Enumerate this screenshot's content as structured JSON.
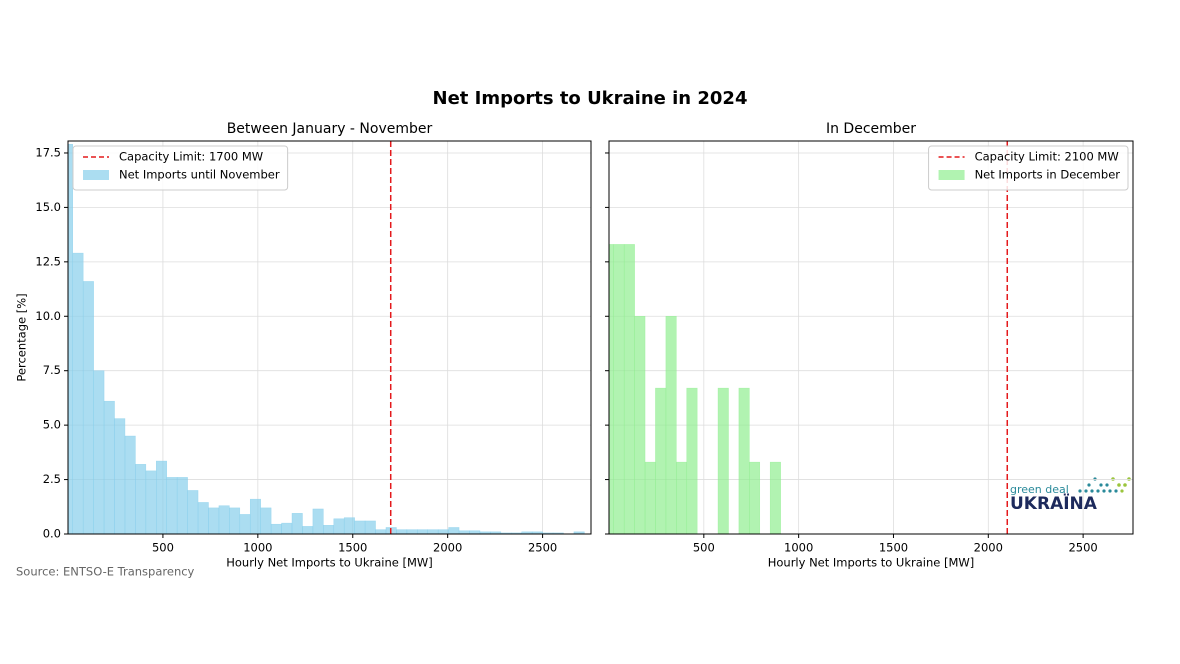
{
  "title": "Net Imports to Ukraine in 2024",
  "source": "Source: ENTSO-E Transparency",
  "logo": {
    "top": "green deal",
    "bottom": "UKRAЇNA"
  },
  "chart_data": [
    {
      "type": "histogram",
      "title": "Between January - November",
      "xlabel": "Hourly Net Imports to Ukraine [MW]",
      "ylabel": "Percentage [%]",
      "bins": [
        0,
        25,
        80,
        135,
        190,
        245,
        300,
        355,
        410,
        465,
        520,
        575,
        630,
        685,
        740,
        795,
        850,
        905,
        960,
        1015,
        1070,
        1125,
        1180,
        1235,
        1290,
        1345,
        1400,
        1455,
        1510,
        1565,
        1620,
        1675,
        1730,
        1785,
        1840,
        1895,
        1950,
        2005,
        2060,
        2115,
        2170,
        2225,
        2280,
        2335,
        2390,
        2445,
        2500,
        2555,
        2610,
        2665,
        2720
      ],
      "series": [
        {
          "name": "Net Imports until November",
          "color": "#87ceeb",
          "values": [
            17.9,
            12.9,
            11.6,
            7.5,
            6.1,
            5.3,
            4.5,
            3.2,
            2.9,
            3.35,
            2.6,
            2.6,
            2.0,
            1.45,
            1.2,
            1.3,
            1.2,
            0.9,
            1.6,
            1.2,
            0.45,
            0.5,
            0.95,
            0.35,
            1.15,
            0.4,
            0.7,
            0.75,
            0.6,
            0.6,
            0.2,
            0.3,
            0.2,
            0.2,
            0.2,
            0.2,
            0.2,
            0.3,
            0.15,
            0.15,
            0.1,
            0.1,
            0.05,
            0.05,
            0.1,
            0.1,
            0.05,
            0.05,
            0,
            0.1
          ]
        }
      ],
      "vline": {
        "name": "Capacity Limit: 1700 MW",
        "value": 1700,
        "color": "#e41a1c"
      },
      "xlim": [
        0,
        2755
      ],
      "ylim": [
        0,
        18.05
      ],
      "xticks": [
        500,
        1000,
        1500,
        2000,
        2500
      ],
      "yticks": [
        {
          "value": 0,
          "label": "0.0"
        },
        {
          "value": 2.5,
          "label": "2.5"
        },
        {
          "value": 5,
          "label": "5.0"
        },
        {
          "value": 7.5,
          "label": "7.5"
        },
        {
          "value": 10,
          "label": "10.0"
        },
        {
          "value": 12.5,
          "label": "12.5"
        },
        {
          "value": 15,
          "label": "15.0"
        },
        {
          "value": 17.5,
          "label": "17.5"
        }
      ],
      "grid": true,
      "legend": "upper left"
    },
    {
      "type": "histogram",
      "title": "In December",
      "xlabel": "Hourly Net Imports to Ukraine [MW]",
      "bins": [
        0,
        25,
        80,
        135,
        190,
        245,
        300,
        355,
        410,
        465,
        520,
        575,
        630,
        685,
        740,
        795,
        850,
        905
      ],
      "series": [
        {
          "name": "Net Imports in December",
          "color": "#90ee90",
          "values": [
            13.3,
            13.3,
            13.3,
            10.0,
            3.3,
            6.7,
            10.0,
            3.3,
            6.7,
            0,
            0,
            6.7,
            0,
            6.7,
            3.3,
            0,
            3.3
          ]
        }
      ],
      "vline": {
        "name": "Capacity Limit: 2100 MW",
        "value": 2100,
        "color": "#e41a1c"
      },
      "xlim": [
        0,
        2763
      ],
      "ylim": [
        0,
        18.05
      ],
      "xticks": [
        500,
        1000,
        1500,
        2000,
        2500
      ],
      "yticks": [
        0,
        2.5,
        5,
        7.5,
        10,
        12.5,
        15,
        17.5
      ],
      "grid": true,
      "legend": "upper right"
    }
  ]
}
